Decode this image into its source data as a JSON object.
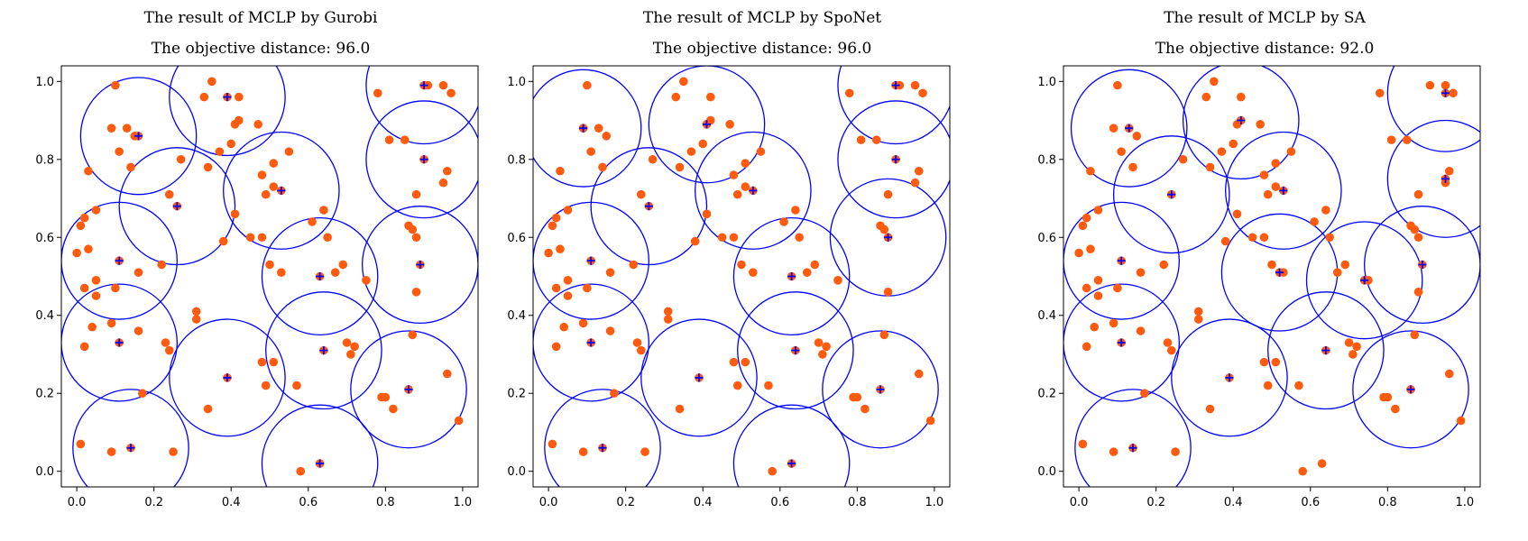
{
  "chart_data": [
    {
      "type": "scatter",
      "title": "The result of MCLP by Gurobi",
      "subtitle": "The objective distance: 96.0",
      "xlim": [
        -0.04,
        1.04
      ],
      "ylim": [
        -0.04,
        1.04
      ],
      "xticks": [
        "0.0",
        "0.2",
        "0.4",
        "0.6",
        "0.8",
        "1.0"
      ],
      "yticks": [
        "0.0",
        "0.2",
        "0.4",
        "0.6",
        "0.8",
        "1.0"
      ],
      "radius": 0.15,
      "point_color": "#ff5b0f",
      "facility_color": "#0000ff",
      "circle_color": "#0000ff",
      "points": [
        [
          0.1,
          0.99
        ],
        [
          0.33,
          0.96
        ],
        [
          0.35,
          1.0
        ],
        [
          0.42,
          0.96
        ],
        [
          0.91,
          0.99
        ],
        [
          0.95,
          0.99
        ],
        [
          0.97,
          0.97
        ],
        [
          0.78,
          0.97
        ],
        [
          0.09,
          0.88
        ],
        [
          0.13,
          0.88
        ],
        [
          0.15,
          0.86
        ],
        [
          0.11,
          0.82
        ],
        [
          0.14,
          0.78
        ],
        [
          0.03,
          0.77
        ],
        [
          0.42,
          0.9
        ],
        [
          0.41,
          0.89
        ],
        [
          0.37,
          0.82
        ],
        [
          0.4,
          0.84
        ],
        [
          0.47,
          0.89
        ],
        [
          0.34,
          0.78
        ],
        [
          0.27,
          0.8
        ],
        [
          0.51,
          0.79
        ],
        [
          0.48,
          0.76
        ],
        [
          0.55,
          0.82
        ],
        [
          0.49,
          0.71
        ],
        [
          0.51,
          0.73
        ],
        [
          0.85,
          0.85
        ],
        [
          0.88,
          0.71
        ],
        [
          0.81,
          0.85
        ],
        [
          0.95,
          0.74
        ],
        [
          0.96,
          0.77
        ],
        [
          0.02,
          0.65
        ],
        [
          0.05,
          0.67
        ],
        [
          0.01,
          0.63
        ],
        [
          0.0,
          0.56
        ],
        [
          0.24,
          0.71
        ],
        [
          0.41,
          0.66
        ],
        [
          0.45,
          0.6
        ],
        [
          0.48,
          0.6
        ],
        [
          0.38,
          0.59
        ],
        [
          0.61,
          0.64
        ],
        [
          0.64,
          0.67
        ],
        [
          0.65,
          0.6
        ],
        [
          0.03,
          0.57
        ],
        [
          0.02,
          0.47
        ],
        [
          0.1,
          0.47
        ],
        [
          0.16,
          0.51
        ],
        [
          0.05,
          0.49
        ],
        [
          0.05,
          0.45
        ],
        [
          0.22,
          0.53
        ],
        [
          0.5,
          0.53
        ],
        [
          0.53,
          0.51
        ],
        [
          0.67,
          0.51
        ],
        [
          0.69,
          0.53
        ],
        [
          0.75,
          0.49
        ],
        [
          0.86,
          0.63
        ],
        [
          0.87,
          0.62
        ],
        [
          0.88,
          0.6
        ],
        [
          0.88,
          0.46
        ],
        [
          0.31,
          0.41
        ],
        [
          0.31,
          0.39
        ],
        [
          0.04,
          0.37
        ],
        [
          0.09,
          0.38
        ],
        [
          0.02,
          0.32
        ],
        [
          0.16,
          0.36
        ],
        [
          0.23,
          0.33
        ],
        [
          0.24,
          0.31
        ],
        [
          0.48,
          0.28
        ],
        [
          0.51,
          0.28
        ],
        [
          0.49,
          0.22
        ],
        [
          0.57,
          0.22
        ],
        [
          0.7,
          0.33
        ],
        [
          0.71,
          0.3
        ],
        [
          0.72,
          0.32
        ],
        [
          0.87,
          0.35
        ],
        [
          0.34,
          0.16
        ],
        [
          0.17,
          0.2
        ],
        [
          0.79,
          0.19
        ],
        [
          0.8,
          0.19
        ],
        [
          0.82,
          0.16
        ],
        [
          0.96,
          0.25
        ],
        [
          0.99,
          0.13
        ],
        [
          0.01,
          0.07
        ],
        [
          0.09,
          0.05
        ],
        [
          0.25,
          0.05
        ],
        [
          0.58,
          0.0
        ]
      ],
      "facilities": [
        [
          0.39,
          0.96
        ],
        [
          0.9,
          0.99
        ],
        [
          0.16,
          0.86
        ],
        [
          0.26,
          0.68
        ],
        [
          0.53,
          0.72
        ],
        [
          0.9,
          0.8
        ],
        [
          0.11,
          0.54
        ],
        [
          0.63,
          0.5
        ],
        [
          0.89,
          0.53
        ],
        [
          0.11,
          0.33
        ],
        [
          0.64,
          0.31
        ],
        [
          0.39,
          0.24
        ],
        [
          0.86,
          0.21
        ],
        [
          0.14,
          0.06
        ],
        [
          0.63,
          0.02
        ]
      ]
    },
    {
      "type": "scatter",
      "title": "The result of MCLP by SpoNet",
      "subtitle": "The objective distance: 96.0",
      "xlim": [
        -0.04,
        1.04
      ],
      "ylim": [
        -0.04,
        1.04
      ],
      "xticks": [
        "0.0",
        "0.2",
        "0.4",
        "0.6",
        "0.8",
        "1.0"
      ],
      "yticks": [
        "0.0",
        "0.2",
        "0.4",
        "0.6",
        "0.8",
        "1.0"
      ],
      "radius": 0.15,
      "point_color": "#ff5b0f",
      "facility_color": "#0000ff",
      "circle_color": "#0000ff",
      "points": [
        [
          0.1,
          0.99
        ],
        [
          0.33,
          0.96
        ],
        [
          0.35,
          1.0
        ],
        [
          0.42,
          0.96
        ],
        [
          0.91,
          0.99
        ],
        [
          0.95,
          0.99
        ],
        [
          0.97,
          0.97
        ],
        [
          0.78,
          0.97
        ],
        [
          0.09,
          0.88
        ],
        [
          0.13,
          0.88
        ],
        [
          0.15,
          0.86
        ],
        [
          0.11,
          0.82
        ],
        [
          0.14,
          0.78
        ],
        [
          0.03,
          0.77
        ],
        [
          0.42,
          0.9
        ],
        [
          0.41,
          0.89
        ],
        [
          0.37,
          0.82
        ],
        [
          0.4,
          0.84
        ],
        [
          0.47,
          0.89
        ],
        [
          0.34,
          0.78
        ],
        [
          0.27,
          0.8
        ],
        [
          0.51,
          0.79
        ],
        [
          0.48,
          0.76
        ],
        [
          0.55,
          0.82
        ],
        [
          0.49,
          0.71
        ],
        [
          0.51,
          0.73
        ],
        [
          0.85,
          0.85
        ],
        [
          0.88,
          0.71
        ],
        [
          0.81,
          0.85
        ],
        [
          0.95,
          0.74
        ],
        [
          0.96,
          0.77
        ],
        [
          0.02,
          0.65
        ],
        [
          0.05,
          0.67
        ],
        [
          0.01,
          0.63
        ],
        [
          0.0,
          0.56
        ],
        [
          0.24,
          0.71
        ],
        [
          0.41,
          0.66
        ],
        [
          0.45,
          0.6
        ],
        [
          0.48,
          0.6
        ],
        [
          0.38,
          0.59
        ],
        [
          0.61,
          0.64
        ],
        [
          0.64,
          0.67
        ],
        [
          0.65,
          0.6
        ],
        [
          0.03,
          0.57
        ],
        [
          0.02,
          0.47
        ],
        [
          0.1,
          0.47
        ],
        [
          0.16,
          0.51
        ],
        [
          0.05,
          0.49
        ],
        [
          0.05,
          0.45
        ],
        [
          0.22,
          0.53
        ],
        [
          0.5,
          0.53
        ],
        [
          0.53,
          0.51
        ],
        [
          0.67,
          0.51
        ],
        [
          0.69,
          0.53
        ],
        [
          0.75,
          0.49
        ],
        [
          0.86,
          0.63
        ],
        [
          0.87,
          0.62
        ],
        [
          0.88,
          0.6
        ],
        [
          0.88,
          0.46
        ],
        [
          0.31,
          0.41
        ],
        [
          0.31,
          0.39
        ],
        [
          0.04,
          0.37
        ],
        [
          0.09,
          0.38
        ],
        [
          0.02,
          0.32
        ],
        [
          0.16,
          0.36
        ],
        [
          0.23,
          0.33
        ],
        [
          0.24,
          0.31
        ],
        [
          0.48,
          0.28
        ],
        [
          0.51,
          0.28
        ],
        [
          0.49,
          0.22
        ],
        [
          0.57,
          0.22
        ],
        [
          0.7,
          0.33
        ],
        [
          0.71,
          0.3
        ],
        [
          0.72,
          0.32
        ],
        [
          0.87,
          0.35
        ],
        [
          0.34,
          0.16
        ],
        [
          0.17,
          0.2
        ],
        [
          0.79,
          0.19
        ],
        [
          0.8,
          0.19
        ],
        [
          0.82,
          0.16
        ],
        [
          0.96,
          0.25
        ],
        [
          0.99,
          0.13
        ],
        [
          0.01,
          0.07
        ],
        [
          0.09,
          0.05
        ],
        [
          0.25,
          0.05
        ],
        [
          0.58,
          0.0
        ]
      ],
      "facilities": [
        [
          0.09,
          0.88
        ],
        [
          0.41,
          0.89
        ],
        [
          0.9,
          0.99
        ],
        [
          0.26,
          0.68
        ],
        [
          0.53,
          0.72
        ],
        [
          0.9,
          0.8
        ],
        [
          0.11,
          0.54
        ],
        [
          0.63,
          0.5
        ],
        [
          0.88,
          0.6
        ],
        [
          0.11,
          0.33
        ],
        [
          0.64,
          0.31
        ],
        [
          0.39,
          0.24
        ],
        [
          0.86,
          0.21
        ],
        [
          0.14,
          0.06
        ],
        [
          0.63,
          0.02
        ]
      ]
    },
    {
      "type": "scatter",
      "title": "The result of MCLP by SA",
      "subtitle": "The objective distance: 92.0",
      "xlim": [
        -0.04,
        1.04
      ],
      "ylim": [
        -0.04,
        1.04
      ],
      "xticks": [
        "0.0",
        "0.2",
        "0.4",
        "0.6",
        "0.8",
        "1.0"
      ],
      "yticks": [
        "0.0",
        "0.2",
        "0.4",
        "0.6",
        "0.8",
        "1.0"
      ],
      "radius": 0.15,
      "point_color": "#ff5b0f",
      "facility_color": "#0000ff",
      "circle_color": "#0000ff",
      "points": [
        [
          0.1,
          0.99
        ],
        [
          0.33,
          0.96
        ],
        [
          0.35,
          1.0
        ],
        [
          0.42,
          0.96
        ],
        [
          0.91,
          0.99
        ],
        [
          0.95,
          0.99
        ],
        [
          0.97,
          0.97
        ],
        [
          0.78,
          0.97
        ],
        [
          0.09,
          0.88
        ],
        [
          0.13,
          0.88
        ],
        [
          0.15,
          0.86
        ],
        [
          0.11,
          0.82
        ],
        [
          0.14,
          0.78
        ],
        [
          0.03,
          0.77
        ],
        [
          0.42,
          0.9
        ],
        [
          0.41,
          0.89
        ],
        [
          0.37,
          0.82
        ],
        [
          0.4,
          0.84
        ],
        [
          0.47,
          0.89
        ],
        [
          0.34,
          0.78
        ],
        [
          0.27,
          0.8
        ],
        [
          0.51,
          0.79
        ],
        [
          0.48,
          0.76
        ],
        [
          0.55,
          0.82
        ],
        [
          0.49,
          0.71
        ],
        [
          0.51,
          0.73
        ],
        [
          0.85,
          0.85
        ],
        [
          0.88,
          0.71
        ],
        [
          0.81,
          0.85
        ],
        [
          0.95,
          0.74
        ],
        [
          0.96,
          0.77
        ],
        [
          0.02,
          0.65
        ],
        [
          0.05,
          0.67
        ],
        [
          0.01,
          0.63
        ],
        [
          0.0,
          0.56
        ],
        [
          0.24,
          0.71
        ],
        [
          0.41,
          0.66
        ],
        [
          0.45,
          0.6
        ],
        [
          0.48,
          0.6
        ],
        [
          0.38,
          0.59
        ],
        [
          0.61,
          0.64
        ],
        [
          0.64,
          0.67
        ],
        [
          0.65,
          0.6
        ],
        [
          0.03,
          0.57
        ],
        [
          0.02,
          0.47
        ],
        [
          0.1,
          0.47
        ],
        [
          0.16,
          0.51
        ],
        [
          0.05,
          0.49
        ],
        [
          0.05,
          0.45
        ],
        [
          0.22,
          0.53
        ],
        [
          0.5,
          0.53
        ],
        [
          0.53,
          0.51
        ],
        [
          0.67,
          0.51
        ],
        [
          0.69,
          0.53
        ],
        [
          0.75,
          0.49
        ],
        [
          0.86,
          0.63
        ],
        [
          0.87,
          0.62
        ],
        [
          0.88,
          0.6
        ],
        [
          0.88,
          0.46
        ],
        [
          0.31,
          0.41
        ],
        [
          0.31,
          0.39
        ],
        [
          0.04,
          0.37
        ],
        [
          0.09,
          0.38
        ],
        [
          0.02,
          0.32
        ],
        [
          0.16,
          0.36
        ],
        [
          0.23,
          0.33
        ],
        [
          0.24,
          0.31
        ],
        [
          0.48,
          0.28
        ],
        [
          0.51,
          0.28
        ],
        [
          0.49,
          0.22
        ],
        [
          0.57,
          0.22
        ],
        [
          0.7,
          0.33
        ],
        [
          0.71,
          0.3
        ],
        [
          0.72,
          0.32
        ],
        [
          0.87,
          0.35
        ],
        [
          0.34,
          0.16
        ],
        [
          0.17,
          0.2
        ],
        [
          0.79,
          0.19
        ],
        [
          0.8,
          0.19
        ],
        [
          0.82,
          0.16
        ],
        [
          0.96,
          0.25
        ],
        [
          0.99,
          0.13
        ],
        [
          0.01,
          0.07
        ],
        [
          0.09,
          0.05
        ],
        [
          0.25,
          0.05
        ],
        [
          0.58,
          0.0
        ],
        [
          0.63,
          0.02
        ]
      ],
      "facilities": [
        [
          0.13,
          0.88
        ],
        [
          0.42,
          0.9
        ],
        [
          0.95,
          0.97
        ],
        [
          0.24,
          0.71
        ],
        [
          0.53,
          0.72
        ],
        [
          0.95,
          0.75
        ],
        [
          0.11,
          0.54
        ],
        [
          0.52,
          0.51
        ],
        [
          0.89,
          0.53
        ],
        [
          0.74,
          0.49
        ],
        [
          0.11,
          0.33
        ],
        [
          0.64,
          0.31
        ],
        [
          0.39,
          0.24
        ],
        [
          0.86,
          0.21
        ],
        [
          0.14,
          0.06
        ]
      ]
    }
  ]
}
